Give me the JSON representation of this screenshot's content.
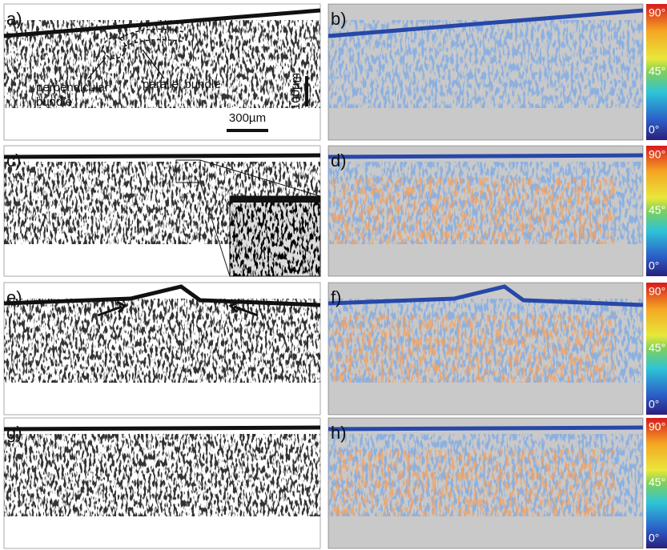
{
  "panels": [
    {
      "label": "a)"
    },
    {
      "label": "b)"
    },
    {
      "label": "c)"
    },
    {
      "label": "d)"
    },
    {
      "label": "e)"
    },
    {
      "label": "f)"
    },
    {
      "label": "g)"
    },
    {
      "label": "h)"
    }
  ],
  "annotations": [
    "perpendicular",
    "bundle",
    "parallel bundle",
    "100µm",
    "300µm"
  ],
  "colorbars": [
    {
      "labels": [
        "90°",
        "45°",
        "0°"
      ]
    },
    {
      "labels": [
        "90°",
        "45°",
        "0°"
      ]
    },
    {
      "labels": [
        "90°",
        "45°",
        "0°"
      ]
    },
    {
      "labels": [
        "90°",
        "45°",
        "0°"
      ]
    }
  ]
}
